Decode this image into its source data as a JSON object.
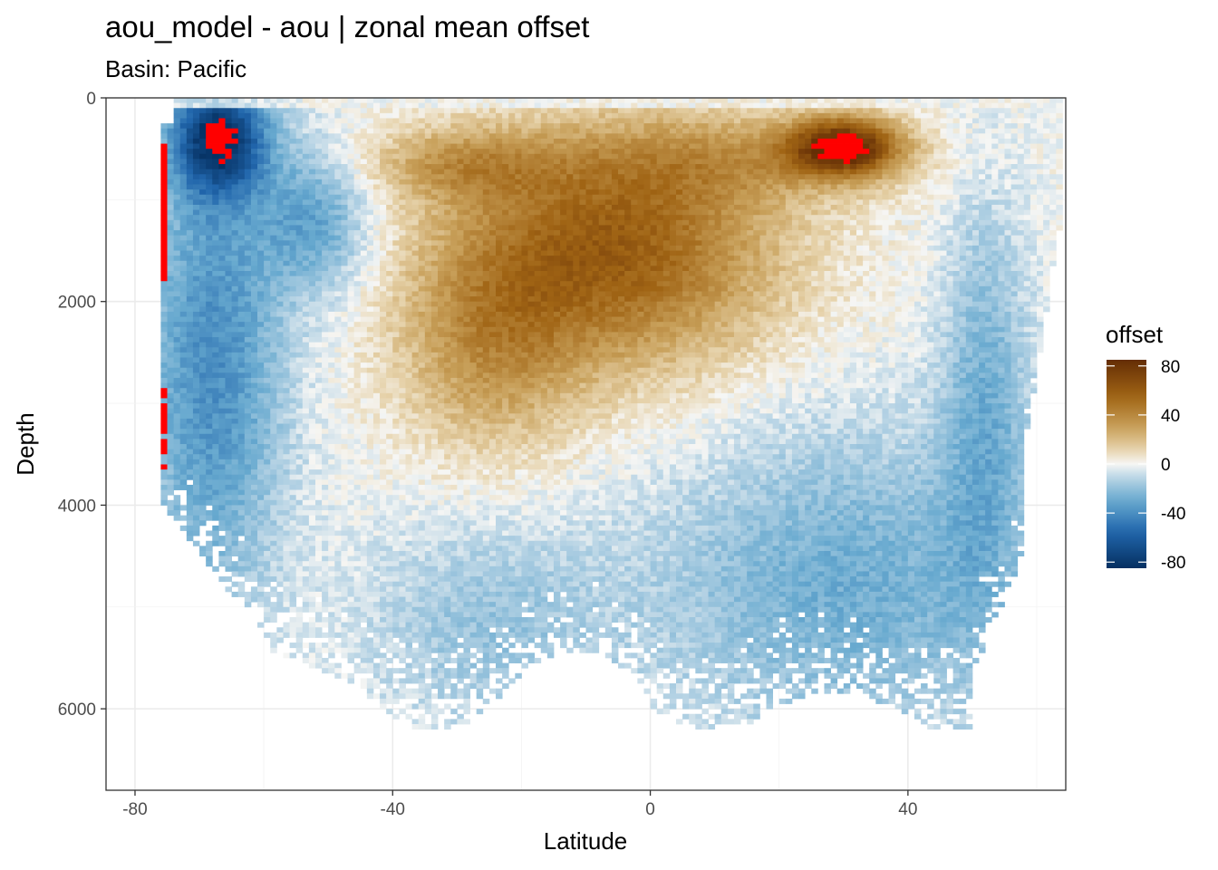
{
  "chart_data": {
    "type": "heatmap",
    "title": "aou_model - aou  | zonal mean offset",
    "subtitle": "Basin: Pacific",
    "xlabel": "Latitude",
    "ylabel": "Depth",
    "xlim": [
      -84.5,
      64.5
    ],
    "ylim": [
      6800,
      0
    ],
    "y_reversed": true,
    "grid": true,
    "x_ticks": [
      -80,
      -40,
      0,
      40
    ],
    "x_tick_labels": [
      "-80",
      "-40",
      "0",
      "40"
    ],
    "y_ticks": [
      0,
      2000,
      4000,
      6000
    ],
    "y_tick_labels": [
      "0",
      "2000",
      "4000",
      "6000"
    ],
    "legend": {
      "title": "offset",
      "position": "right",
      "limits": [
        -85,
        85
      ],
      "breaks": [
        80,
        40,
        0,
        -40,
        -80
      ],
      "break_labels": [
        "80",
        "40",
        "0",
        "-40",
        "-80"
      ],
      "colors": [
        "#003c30",
        "#01665e",
        "#f5f5f5",
        "#bf812d",
        "#543005"
      ],
      "palette_name": "BrBG (blue low, brown high)",
      "low_color": "#053061",
      "mid_color": "#f7f7f7",
      "high_color": "#6b3000",
      "out_of_range_color": "#ff0000"
    },
    "cell_width_deg": 1,
    "cell_height_m": 50,
    "value_field": "offset",
    "approximate_structure": [
      {
        "region": "surface 0-100 m",
        "lat_range": [
          -75,
          63
        ],
        "offset": 0
      },
      {
        "region": "Southern Ocean shallow",
        "lat_range": [
          -73,
          -60
        ],
        "depth_range": [
          100,
          1000
        ],
        "offset": -70
      },
      {
        "region": "Southern deep band",
        "lat_range": [
          -76,
          -50
        ],
        "depth_range": [
          1000,
          5500
        ],
        "offset": -40
      },
      {
        "region": "mid-depth tropical maximum",
        "lat_range": [
          -30,
          20
        ],
        "depth_range": [
          800,
          3000
        ],
        "offset": 50
      },
      {
        "region": "North Pacific subsurface maximum",
        "lat_range": [
          22,
          38
        ],
        "depth_range": [
          200,
          800
        ],
        "offset": 75
      },
      {
        "region": "deep North Pacific",
        "lat_range": [
          0,
          55
        ],
        "depth_range": [
          3500,
          6200
        ],
        "offset": -25
      },
      {
        "region": "deep South Pacific",
        "lat_range": [
          -40,
          -10
        ],
        "depth_range": [
          4000,
          6000
        ],
        "offset": -20
      }
    ]
  }
}
